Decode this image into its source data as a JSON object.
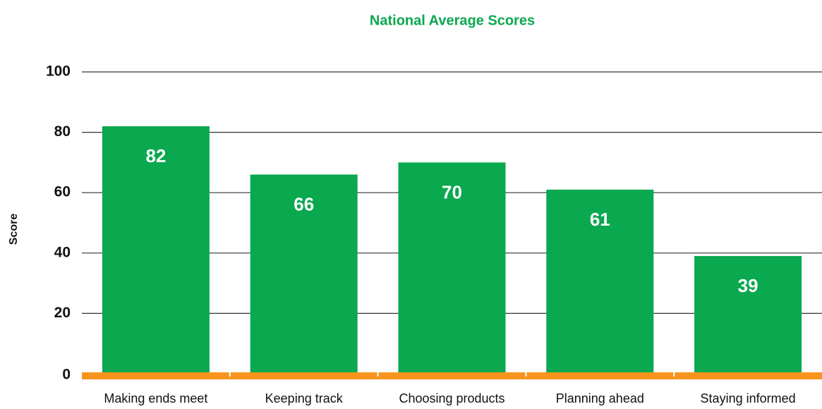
{
  "chart_data": {
    "type": "bar",
    "title": "National Average Scores",
    "y_label": "Score",
    "categories": [
      "Making ends meet",
      "Keeping track",
      "Choosing products",
      "Planning ahead",
      "Staying informed"
    ],
    "values": [
      82,
      66,
      70,
      61,
      39
    ],
    "color": "#0aa84f",
    "ylim": [
      0,
      100
    ],
    "yticks": [
      0,
      20,
      40,
      60,
      80,
      100
    ],
    "grid": true
  }
}
